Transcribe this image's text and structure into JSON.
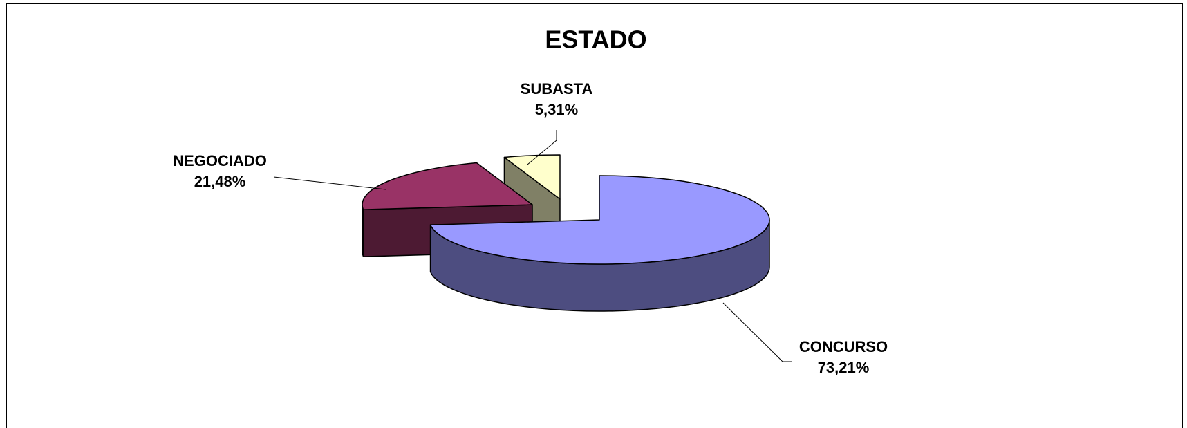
{
  "chart_data": {
    "type": "pie3d",
    "title": "ESTADO",
    "categories": [
      "CONCURSO",
      "NEGOCIADO",
      "SUBASTA"
    ],
    "values": [
      73.21,
      21.48,
      5.31
    ],
    "value_labels": [
      "73,21%",
      "21,48%",
      "5,31%"
    ],
    "colors": [
      "#9999ff",
      "#993366",
      "#ffffcc"
    ]
  }
}
